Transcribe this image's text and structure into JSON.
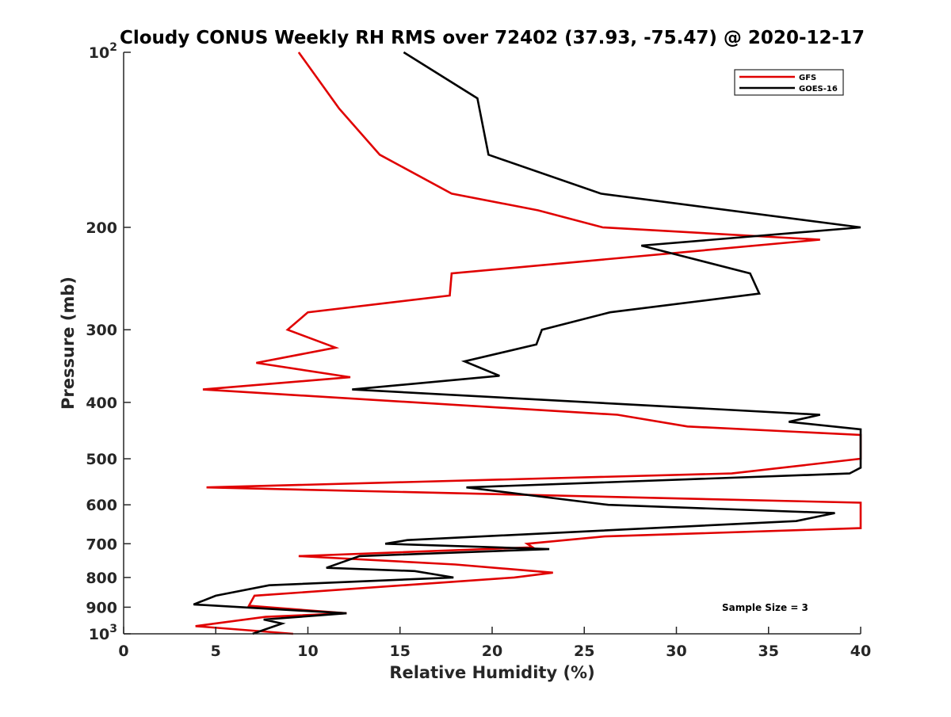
{
  "chart_data": {
    "type": "line",
    "title": "Cloudy CONUS Weekly RH RMS over 72402 (37.93, -75.47) @ 2020-12-17",
    "xlabel": "Relative Humidity (%)",
    "ylabel": "Pressure (mb)",
    "xlim": [
      0,
      40
    ],
    "ylim": [
      100,
      1000
    ],
    "y_scale": "log",
    "y_reversed": true,
    "grid": false,
    "legend_position": "top-right",
    "x_ticks": [
      "0",
      "5",
      "10",
      "15",
      "20",
      "25",
      "30",
      "35",
      "40"
    ],
    "y_ticks": [
      {
        "value": 100,
        "base": "10",
        "exp": "2"
      },
      {
        "value": 200,
        "label": "200"
      },
      {
        "value": 300,
        "label": "300"
      },
      {
        "value": 400,
        "label": "400"
      },
      {
        "value": 500,
        "label": "500"
      },
      {
        "value": 600,
        "label": "600"
      },
      {
        "value": 700,
        "label": "700"
      },
      {
        "value": 800,
        "label": "800"
      },
      {
        "value": 900,
        "label": "900"
      },
      {
        "value": 1000,
        "base": "10",
        "exp": "3"
      }
    ],
    "series": [
      {
        "name": "GFS",
        "color": "#e00000",
        "points": [
          [
            9.5,
            100
          ],
          [
            11.7,
            125
          ],
          [
            13.9,
            150
          ],
          [
            17.8,
            175
          ],
          [
            22.5,
            187
          ],
          [
            26.0,
            200
          ],
          [
            37.8,
            210
          ],
          [
            17.8,
            240
          ],
          [
            17.7,
            262
          ],
          [
            10.0,
            280
          ],
          [
            8.9,
            300
          ],
          [
            11.5,
            322
          ],
          [
            7.2,
            342
          ],
          [
            12.3,
            362
          ],
          [
            4.3,
            380
          ],
          [
            26.8,
            420
          ],
          [
            30.6,
            440
          ],
          [
            40.0,
            455
          ],
          [
            40.0,
            500
          ],
          [
            33.0,
            530
          ],
          [
            4.5,
            560
          ],
          [
            40.0,
            595
          ],
          [
            40.0,
            658
          ],
          [
            26.1,
            680
          ],
          [
            21.9,
            700
          ],
          [
            22.2,
            710
          ],
          [
            9.5,
            735
          ],
          [
            18.0,
            760
          ],
          [
            23.3,
            785
          ],
          [
            21.2,
            800
          ],
          [
            7.1,
            860
          ],
          [
            6.8,
            895
          ],
          [
            12.1,
            922
          ],
          [
            7.7,
            935
          ],
          [
            3.9,
            970
          ],
          [
            9.2,
            1000
          ]
        ]
      },
      {
        "name": "GOES-16",
        "color": "#000000",
        "points": [
          [
            15.2,
            100
          ],
          [
            19.2,
            120
          ],
          [
            19.8,
            150
          ],
          [
            25.9,
            175
          ],
          [
            40.0,
            200
          ],
          [
            28.1,
            215
          ],
          [
            34.0,
            240
          ],
          [
            34.5,
            260
          ],
          [
            26.4,
            280
          ],
          [
            22.7,
            300
          ],
          [
            22.4,
            318
          ],
          [
            18.5,
            340
          ],
          [
            20.4,
            360
          ],
          [
            12.4,
            380
          ],
          [
            37.8,
            420
          ],
          [
            36.1,
            432
          ],
          [
            40.0,
            445
          ],
          [
            40.0,
            518
          ],
          [
            39.4,
            530
          ],
          [
            18.6,
            560
          ],
          [
            26.3,
            600
          ],
          [
            38.6,
            620
          ],
          [
            36.5,
            640
          ],
          [
            15.4,
            690
          ],
          [
            14.2,
            700
          ],
          [
            23.1,
            715
          ],
          [
            12.8,
            735
          ],
          [
            11.0,
            770
          ],
          [
            15.8,
            780
          ],
          [
            17.9,
            800
          ],
          [
            7.9,
            825
          ],
          [
            5.0,
            860
          ],
          [
            3.8,
            890
          ],
          [
            12.1,
            922
          ],
          [
            7.6,
            945
          ],
          [
            8.6,
            960
          ],
          [
            7.0,
            1000
          ]
        ]
      }
    ],
    "annotations": [
      "Sample Size = 3"
    ]
  }
}
